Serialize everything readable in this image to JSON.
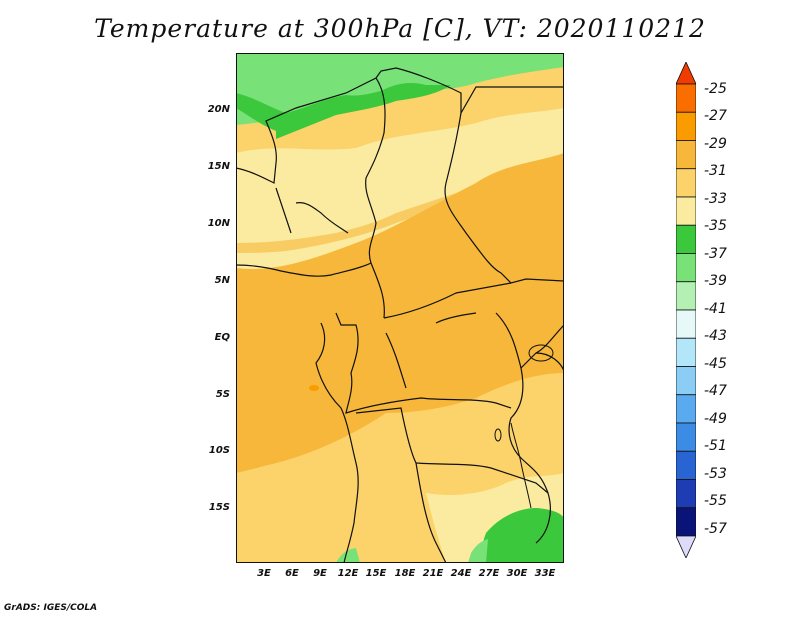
{
  "title": "Temperature at 300hPa [C], VT: 2020110212",
  "credit": "GrADS: IGES/COLA",
  "map": {
    "lat_labels": [
      "20N",
      "15N",
      "10N",
      "5N",
      "EQ",
      "5S",
      "10S",
      "15S"
    ],
    "lon_labels": [
      "3E",
      "6E",
      "9E",
      "12E",
      "15E",
      "18E",
      "21E",
      "24E",
      "27E",
      "30E",
      "33E"
    ],
    "lat_range": [
      -20,
      25
    ],
    "lon_range": [
      0,
      35
    ]
  },
  "colorbar": {
    "labels": [
      "-25",
      "-27",
      "-29",
      "-31",
      "-33",
      "-35",
      "-37",
      "-39",
      "-41",
      "-43",
      "-45",
      "-47",
      "-49",
      "-51",
      "-53",
      "-55",
      "-57"
    ],
    "colors": [
      "#f03c00",
      "#fa6e00",
      "#fa9b00",
      "#f6b73a",
      "#fcd26a",
      "#fbeba0",
      "#3cc83c",
      "#78e178",
      "#b4f0b4",
      "#e6f8f8",
      "#b4e6fa",
      "#8ccdf6",
      "#5aaaf0",
      "#3c8ce6",
      "#2864d2",
      "#1e3cb4",
      "#0a1478",
      "#dcdcfa"
    ]
  }
}
